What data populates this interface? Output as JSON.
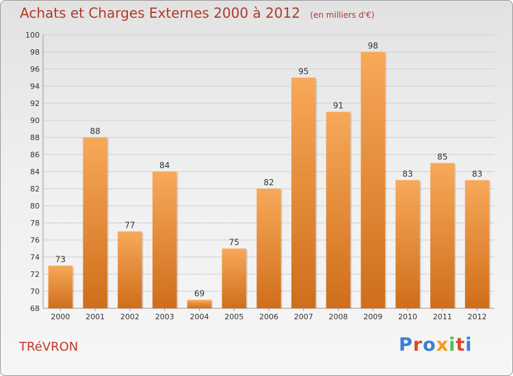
{
  "header": {
    "title": "Achats et Charges Externes 2000 à 2012",
    "subtitle": "(en milliers d'€)"
  },
  "footer": {
    "commune": "TRéVRON",
    "logo": "Proxiti",
    "logo_colors": [
      "#3a7fd5",
      "#d94b2b",
      "#3a7fd5",
      "#f39c12",
      "#5cb85c",
      "#d94b2b",
      "#3a7fd5"
    ]
  },
  "colors": {
    "bar": "#f0923a",
    "bar_light": "#f7a959",
    "bar_dark": "#cf6e1b",
    "grid": "#cfcfcf",
    "axis_text": "#333333"
  },
  "chart_data": {
    "type": "bar",
    "categories": [
      "2000",
      "2001",
      "2002",
      "2003",
      "2004",
      "2005",
      "2006",
      "2007",
      "2008",
      "2009",
      "2010",
      "2011",
      "2012"
    ],
    "values": [
      73,
      88,
      77,
      84,
      69,
      75,
      82,
      95,
      91,
      98,
      83,
      85,
      83
    ],
    "data_labels": [
      "73",
      "88",
      "77",
      "84",
      "69",
      "75",
      "82",
      "95",
      "91",
      "98",
      "83",
      "85",
      "83"
    ],
    "yticks": [
      68,
      70,
      72,
      74,
      76,
      78,
      80,
      82,
      84,
      86,
      88,
      90,
      92,
      94,
      96,
      98,
      100
    ],
    "ylim": [
      68,
      100
    ],
    "grid": true,
    "legend": "none"
  }
}
